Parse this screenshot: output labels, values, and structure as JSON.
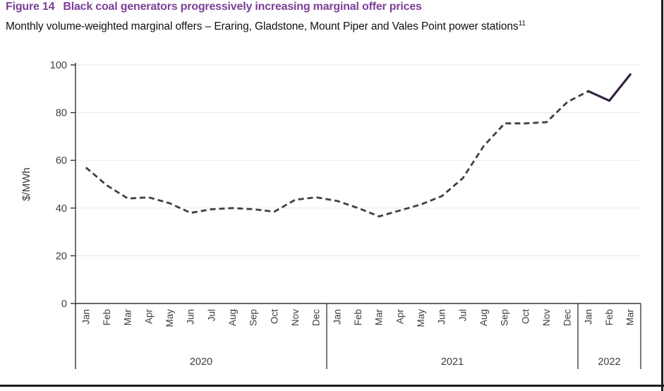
{
  "header": {
    "figure_label": "Figure 14",
    "title": "Black coal generators progressively increasing marginal offer prices",
    "subtitle": "Monthly volume-weighted marginal offers – Eraring, Gladstone, Mount Piper and Vales Point power stations",
    "footnote_marker": "11"
  },
  "colors": {
    "title_purple": "#7d3f98",
    "dashed_line": "#404040",
    "solid_line": "#35213d",
    "gridline": "#ebebeb",
    "axis": "#333333",
    "label_text": "#3d3d3d"
  },
  "chart_data": {
    "type": "line",
    "ylabel": "$/MWh",
    "ylim": [
      0,
      100
    ],
    "yticks": [
      0,
      20,
      40,
      60,
      80,
      100
    ],
    "x_labels": [
      "Jan",
      "Feb",
      "Mar",
      "Apr",
      "May",
      "Jun",
      "Jul",
      "Aug",
      "Sep",
      "Oct",
      "Nov",
      "Dec",
      "Jan",
      "Feb",
      "Mar",
      "Apr",
      "May",
      "Jun",
      "Jul",
      "Aug",
      "Sep",
      "Oct",
      "Nov",
      "Dec",
      "Jan",
      "Feb",
      "Mar"
    ],
    "year_groups": [
      {
        "label": "2020",
        "months": 12
      },
      {
        "label": "2021",
        "months": 12
      },
      {
        "label": "2022",
        "months": 3
      }
    ],
    "values": [
      57,
      49.5,
      44,
      44.5,
      42,
      38,
      39.5,
      40,
      39.5,
      38.5,
      43.5,
      44.5,
      43,
      40,
      36.5,
      39,
      41.5,
      45,
      52.5,
      66,
      75.5,
      75.5,
      76,
      84.5,
      89,
      85,
      96
    ],
    "solid_from_index": 24,
    "grid": true,
    "legend": false
  }
}
